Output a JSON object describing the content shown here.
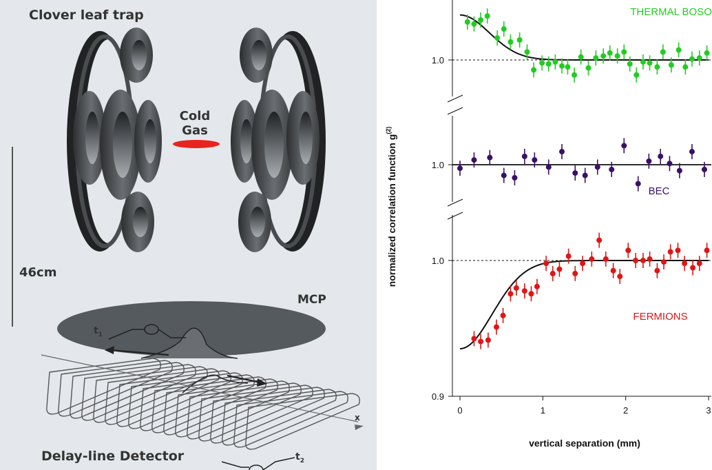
{
  "diagram": {
    "title": "Clover leaf trap",
    "gas_label_line1": "Cold",
    "gas_label_line2": "Gas",
    "scale_label": "46cm",
    "mcp_label": "MCP",
    "detector_label": "Delay-line Detector",
    "t1_label": "t",
    "t1_sub": "1",
    "t2_label": "t",
    "t2_sub": "2",
    "axis_x_label": "x",
    "colors": {
      "panel_bg": "#e4e8ec",
      "coil": "#4a4d50",
      "coil_dark": "#202224",
      "gas": "#e8241e",
      "mcp": "#555a5e"
    }
  },
  "chart_data": {
    "type": "scatter",
    "xlabel": "vertical separation (mm)",
    "ylabel_main": "normalized correlation function g",
    "ylabel_sup": "(2)",
    "xlim": [
      0,
      3
    ],
    "x_ticks": [
      "0",
      "1",
      "2",
      "3"
    ],
    "y_ticks": [
      "1.0",
      "1.0",
      "1.0",
      "0.9"
    ],
    "series": [
      {
        "name": "THERMAL BOSONS",
        "color": "#22cc22",
        "baseline": 1.0,
        "ylim": [
          0.96,
          1.06
        ],
        "fit": {
          "kind": "gaussian_bunching",
          "amplitude": 0.045,
          "width_mm": 0.5
        },
        "x": [
          0.09,
          0.17,
          0.25,
          0.33,
          0.45,
          0.53,
          0.61,
          0.72,
          0.81,
          0.89,
          0.99,
          1.07,
          1.15,
          1.23,
          1.3,
          1.38,
          1.46,
          1.55,
          1.64,
          1.73,
          1.81,
          1.9,
          1.98,
          2.05,
          2.13,
          2.21,
          2.29,
          2.38,
          2.45,
          2.55,
          2.64,
          2.72,
          2.8,
          2.89,
          2.98
        ],
        "y": [
          1.038,
          1.036,
          1.04,
          1.044,
          1.022,
          1.031,
          1.018,
          1.02,
          1.008,
          0.99,
          0.997,
          0.996,
          0.998,
          0.994,
          0.993,
          0.985,
          1.003,
          0.992,
          1.002,
          1.004,
          1.007,
          1.004,
          1.008,
          0.996,
          0.985,
          0.998,
          0.997,
          0.993,
          1.008,
          0.995,
          1.01,
          0.993,
          1.001,
          1.002,
          1.007
        ]
      },
      {
        "name": "BEC",
        "color": "#3a1066",
        "baseline": 1.0,
        "ylim": [
          0.96,
          1.04
        ],
        "fit": {
          "kind": "flat"
        },
        "x": [
          0.0,
          0.17,
          0.36,
          0.53,
          0.66,
          0.78,
          0.9,
          1.07,
          1.23,
          1.39,
          1.51,
          1.66,
          1.83,
          1.98,
          2.15,
          2.28,
          2.42,
          2.53,
          2.65,
          2.8,
          2.95
        ],
        "y": [
          0.997,
          1.004,
          1.006,
          0.991,
          0.989,
          1.007,
          1.004,
          0.998,
          1.011,
          0.993,
          0.991,
          0.998,
          0.996,
          1.016,
          0.984,
          1.003,
          1.007,
          1.001,
          0.995,
          1.011,
          0.996
        ]
      },
      {
        "name": "FERMIONS",
        "color": "#e01515",
        "baseline": 1.0,
        "ylim": [
          0.9,
          1.03
        ],
        "fit": {
          "kind": "gaussian_antibunching",
          "amplitude": -0.061,
          "width_mm": 0.55
        },
        "x": [
          0.17,
          0.25,
          0.34,
          0.44,
          0.52,
          0.61,
          0.68,
          0.78,
          0.86,
          0.93,
          1.04,
          1.12,
          1.2,
          1.31,
          1.39,
          1.48,
          1.59,
          1.68,
          1.76,
          1.85,
          1.93,
          2.03,
          2.12,
          2.21,
          2.29,
          2.38,
          2.46,
          2.54,
          2.63,
          2.71,
          2.81,
          2.89,
          2.98
        ],
        "y": [
          0.946,
          0.944,
          0.945,
          0.954,
          0.962,
          0.977,
          0.981,
          0.979,
          0.977,
          0.982,
          0.998,
          0.991,
          0.994,
          1.003,
          0.991,
          0.998,
          1.001,
          1.014,
          1.001,
          0.993,
          0.989,
          1.007,
          1.0,
          1.0,
          1.001,
          0.993,
          0.999,
          1.006,
          1.007,
          0.998,
          0.995,
          0.998,
          1.007
        ]
      }
    ]
  }
}
